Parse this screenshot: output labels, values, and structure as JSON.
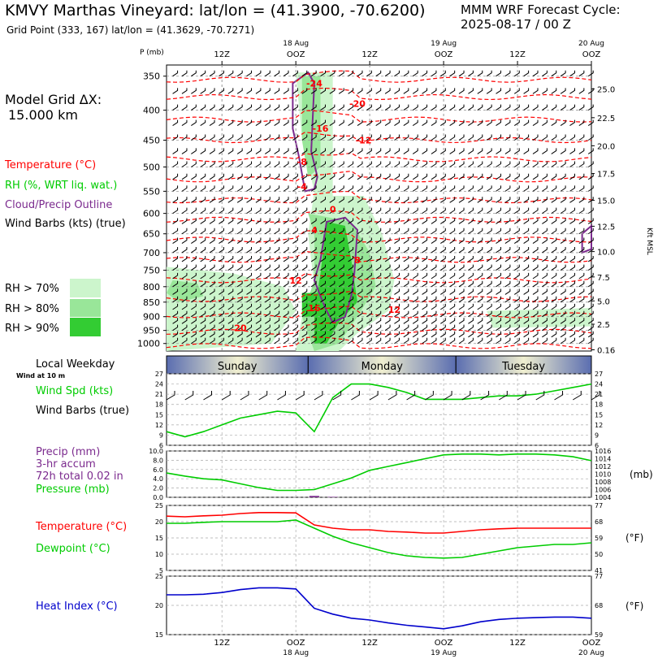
{
  "header": {
    "station": "KMVY Marthas Vineyard:  lat/lon = (41.3900, -70.6200)",
    "grid": "Grid Point (333, 167) lat/lon = (41.3629, -70.7271)",
    "cycle_line1": "MMM WRF Forecast Cycle:",
    "cycle_line2": "2025-08-17 / 00  Z"
  },
  "legend": {
    "model_grid_1": "Model Grid ΔX:",
    "model_grid_2": "15.000 km",
    "temperature": "Temperature (°C)",
    "rh": "RH (%, WRT liq. wat.)",
    "cloud": "Cloud/Precip Outline",
    "wind": "Wind Barbs (kts) (true)",
    "rh70": "RH > 70%",
    "rh80": "RH > 80%",
    "rh90": "RH > 90%",
    "local_weekday": "Local Weekday",
    "wind_at": "Wind at 10 m",
    "wind_spd": "Wind Spd (kts)",
    "wind_barbs": "Wind Barbs (true)",
    "precip_1": "Precip (mm)",
    "precip_2": "3-hr accum",
    "precip_3": "72h total 0.02 in",
    "pressure": "Pressure (mb)",
    "temp_panel": "Temperature (°C)",
    "dewpoint": "Dewpoint (°C)",
    "heat_index": "Heat Index (°C)"
  },
  "colors": {
    "temp": "#ff0000",
    "rh70": "#ccf5cc",
    "rh80": "#99e699",
    "rh90": "#33cc33",
    "cloud": "#7b2a8e",
    "wind": "#00cc00",
    "pressure": "#00cc00",
    "heat": "#0000cc",
    "precip": "#7b2a8e"
  },
  "time_axis": {
    "top_date_labels": [
      {
        "t": 24,
        "d": "18 Aug",
        "z": "OOZ"
      },
      {
        "t": 48,
        "d": "19 Aug",
        "z": "OOZ"
      },
      {
        "t": 72,
        "d": "20 Aug",
        "z": "OOZ"
      }
    ],
    "noon_labels": [
      {
        "t": 12,
        "z": "12Z"
      },
      {
        "t": 36,
        "z": "12Z"
      },
      {
        "t": 60,
        "z": "12Z"
      }
    ],
    "t_start": 3,
    "t_end": 72
  },
  "weekdays": [
    {
      "name": "Sunday",
      "t0": 3,
      "t1": 26
    },
    {
      "name": "Monday",
      "t0": 26,
      "t1": 50
    },
    {
      "name": "Tuesday",
      "t0": 50,
      "t1": 72
    }
  ],
  "chart_data": [
    {
      "type": "heatmap",
      "name": "cross-section",
      "ylabel": "P (mb)",
      "y2label": "Kft MSL",
      "p_levels": [
        350,
        400,
        450,
        500,
        550,
        600,
        650,
        700,
        750,
        800,
        850,
        900,
        950,
        1000
      ],
      "kft_ticks": [
        {
          "p": 1025,
          "v": "0.16"
        },
        {
          "p": 927,
          "v": "2.5"
        },
        {
          "p": 846,
          "v": "5.0"
        },
        {
          "p": 770,
          "v": "7.5"
        },
        {
          "p": 697,
          "v": "10.0"
        },
        {
          "p": 631,
          "v": "12.5"
        },
        {
          "p": 570,
          "v": "15.0"
        },
        {
          "p": 513,
          "v": "17.5"
        },
        {
          "p": 460,
          "v": "20.0"
        },
        {
          "p": 412,
          "v": "22.5"
        },
        {
          "p": 368,
          "v": "25.0"
        }
      ],
      "temp_labels": [
        {
          "t": 27,
          "p": 360,
          "v": "-24"
        },
        {
          "t": 34,
          "p": 390,
          "v": "-20"
        },
        {
          "t": 28,
          "p": 430,
          "v": "-16"
        },
        {
          "t": 35,
          "p": 450,
          "v": "-12"
        },
        {
          "t": 25,
          "p": 490,
          "v": "-8"
        },
        {
          "t": 25,
          "p": 540,
          "v": "-4"
        },
        {
          "t": 30,
          "p": 590,
          "v": "0"
        },
        {
          "t": 27,
          "p": 640,
          "v": "4"
        },
        {
          "t": 34,
          "p": 720,
          "v": "8"
        },
        {
          "t": 24,
          "p": 780,
          "v": "12"
        },
        {
          "t": 27,
          "p": 870,
          "v": "16"
        },
        {
          "t": 15,
          "p": 940,
          "v": "20"
        },
        {
          "t": 40,
          "p": 875,
          "v": "12"
        }
      ]
    },
    {
      "type": "line",
      "name": "wind-speed",
      "ylabel": "Wind Spd (kts)",
      "ylim": [
        6,
        27
      ],
      "yticks": [
        6,
        9,
        12,
        15,
        18,
        21,
        24,
        27
      ],
      "x": [
        3,
        6,
        9,
        12,
        15,
        18,
        21,
        24,
        27,
        30,
        33,
        36,
        39,
        42,
        45,
        48,
        51,
        54,
        57,
        60,
        63,
        66,
        69,
        72
      ],
      "values": [
        10,
        8.5,
        10,
        12,
        14,
        15,
        16,
        15.5,
        10,
        20,
        24,
        24,
        23,
        21.5,
        19.5,
        19.5,
        19.5,
        20,
        20.5,
        20.5,
        21,
        22,
        23,
        24
      ]
    },
    {
      "type": "line",
      "name": "pressure-precip",
      "ylabel": "Precip (mm)",
      "y2label": "(mb)",
      "ylim": [
        0,
        10
      ],
      "yticks": [
        "0.0",
        "2.0",
        "4.0",
        "6.0",
        "8.0",
        "10.0"
      ],
      "y2lim": [
        1004,
        1016
      ],
      "y2ticks": [
        1004,
        1006,
        1008,
        1010,
        1012,
        1014,
        1016
      ],
      "x": [
        3,
        6,
        9,
        12,
        15,
        18,
        21,
        24,
        27,
        30,
        33,
        36,
        39,
        42,
        45,
        48,
        51,
        54,
        57,
        60,
        63,
        66,
        69,
        72
      ],
      "pressure": [
        1010.3,
        1009.5,
        1008.8,
        1008.5,
        1007.5,
        1006.5,
        1005.8,
        1005.8,
        1006,
        1007.5,
        1009,
        1011,
        1012,
        1013,
        1014,
        1015,
        1015.2,
        1015.2,
        1015,
        1015.2,
        1015.2,
        1015,
        1014.5,
        1013.5
      ],
      "precip": [
        0,
        0,
        0,
        0,
        0,
        0,
        0,
        0,
        0.3,
        0.1,
        0,
        0,
        0,
        0,
        0,
        0,
        0,
        0,
        0,
        0,
        0,
        0,
        0,
        0
      ]
    },
    {
      "type": "line",
      "name": "temperature-dewpoint",
      "ylabel": "(°C)",
      "y2label": "(°F)",
      "ylim": [
        5,
        25
      ],
      "yticks": [
        5,
        10,
        15,
        20,
        25
      ],
      "y2ticks": [
        41,
        50,
        59,
        68,
        77
      ],
      "x": [
        3,
        6,
        9,
        12,
        15,
        18,
        21,
        24,
        27,
        30,
        33,
        36,
        39,
        42,
        45,
        48,
        51,
        54,
        57,
        60,
        63,
        66,
        69,
        72
      ],
      "series": [
        {
          "name": "Temperature",
          "color": "#ff0000",
          "values": [
            21.7,
            21.5,
            21.8,
            22,
            22.5,
            22.8,
            22.8,
            22.7,
            19,
            18,
            17.5,
            17.5,
            17,
            16.8,
            16.5,
            16.5,
            17,
            17.5,
            17.8,
            18,
            18,
            18,
            18,
            18
          ]
        },
        {
          "name": "Dewpoint",
          "color": "#00cc00",
          "values": [
            19.5,
            19.5,
            19.8,
            20,
            20,
            20,
            20,
            20.5,
            18,
            15.5,
            13.5,
            12,
            10.5,
            9.5,
            9,
            8.8,
            9,
            10,
            11,
            12,
            12.5,
            13,
            13,
            13.5
          ]
        }
      ]
    },
    {
      "type": "line",
      "name": "heat-index",
      "ylabel": "Heat Index (°C)",
      "y2label": "(°F)",
      "ylim": [
        15,
        25
      ],
      "yticks": [
        15,
        20,
        25
      ],
      "y2ticks": [
        59,
        68,
        77
      ],
      "x": [
        3,
        6,
        9,
        12,
        15,
        18,
        21,
        24,
        27,
        30,
        33,
        36,
        39,
        42,
        45,
        48,
        51,
        54,
        57,
        60,
        63,
        66,
        69,
        72
      ],
      "values": [
        21.8,
        21.8,
        21.9,
        22.2,
        22.7,
        23,
        23,
        22.8,
        19.5,
        18.5,
        17.8,
        17.5,
        17,
        16.6,
        16.3,
        16,
        16.5,
        17.2,
        17.6,
        17.8,
        17.9,
        18,
        18,
        17.8
      ]
    }
  ]
}
